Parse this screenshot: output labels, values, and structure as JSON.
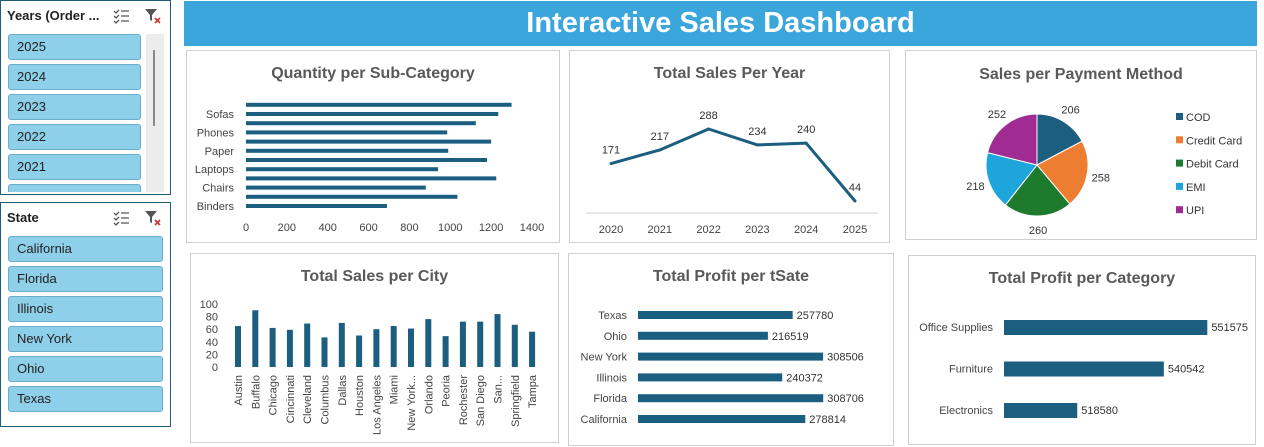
{
  "colors": {
    "bar": "#1b5e80",
    "banner": "#3aa6dc"
  },
  "slicers": {
    "years": {
      "title": "Years (Order ...",
      "items": [
        "2025",
        "2024",
        "2023",
        "2022",
        "2021"
      ]
    },
    "state": {
      "title": "State",
      "items": [
        "California",
        "Florida",
        "Illinois",
        "New York",
        "Ohio",
        "Texas"
      ]
    }
  },
  "dashboard": {
    "title": "Interactive Sales Dashboard"
  },
  "chart_data": [
    {
      "id": "qty_subcat",
      "type": "bar",
      "orientation": "horizontal",
      "title": "Quantity per Sub-Category",
      "categories": [
        "Binders",
        "",
        "Chairs",
        "",
        "Laptops",
        "",
        "Paper",
        "",
        "Phones",
        "",
        "Sofas",
        ""
      ],
      "values": [
        690,
        1035,
        880,
        1225,
        940,
        1180,
        990,
        1200,
        985,
        1125,
        1235,
        1300
      ],
      "xlim": [
        0,
        1400
      ],
      "ticks": [
        0,
        200,
        400,
        600,
        800,
        1000,
        1200,
        1400
      ],
      "tick_labels": [
        "0",
        "200",
        "400",
        "600",
        "800",
        "1000",
        "1200",
        "1400"
      ]
    },
    {
      "id": "sales_year",
      "type": "line",
      "title": "Total Sales Per Year",
      "x": [
        "2020",
        "2021",
        "2022",
        "2023",
        "2024",
        "2025"
      ],
      "values": [
        171,
        217,
        288,
        234,
        240,
        44
      ],
      "data_labels": [
        "171",
        "217",
        "288",
        "234",
        "240",
        "44"
      ]
    },
    {
      "id": "payment",
      "type": "pie",
      "title": "Sales per Payment Method",
      "labels": [
        "COD",
        "Credit Card",
        "Debit Card",
        "EMI",
        "UPI"
      ],
      "values": [
        206,
        258,
        260,
        218,
        252
      ],
      "data_labels": [
        "206",
        "258",
        "260",
        "218",
        "252"
      ],
      "colors": [
        "#1b5e80",
        "#ed7d31",
        "#1e7b2e",
        "#1ea5dc",
        "#a02b93"
      ],
      "legend": "right"
    },
    {
      "id": "sales_city",
      "type": "bar",
      "title": "Total Sales per City",
      "categories": [
        "Austin",
        "Buffalo",
        "Chicago",
        "Cincinnati",
        "Cleveland",
        "Columbus",
        "Dallas",
        "Houston",
        "Los Angeles",
        "Miami",
        "New York...",
        "Orlando",
        "Peoria",
        "Rochester",
        "San Diego",
        "San...",
        "Springfield",
        "Tampa"
      ],
      "values": [
        65,
        90,
        62,
        59,
        69,
        47,
        70,
        50,
        60,
        65,
        61,
        76,
        49,
        72,
        72,
        84,
        67,
        56
      ],
      "ylim": [
        0,
        100
      ],
      "ticks": [
        0,
        20,
        40,
        60,
        80,
        100
      ],
      "tick_labels": [
        "0",
        "20",
        "40",
        "60",
        "80",
        "100"
      ]
    },
    {
      "id": "profit_state",
      "type": "bar",
      "orientation": "horizontal",
      "title": "Total Profit per tSate",
      "categories": [
        "Texas",
        "Ohio",
        "New York",
        "Illinois",
        "Florida",
        "California"
      ],
      "values": [
        257780,
        216519,
        308506,
        240372,
        308706,
        278814
      ],
      "data_labels": [
        "257780",
        "216519",
        "308506",
        "240372",
        "308706",
        "278814"
      ],
      "xlim": [
        0,
        310000
      ]
    },
    {
      "id": "profit_cat",
      "type": "bar",
      "orientation": "horizontal",
      "title": "Total Profit per Category",
      "categories": [
        "Office Supplies",
        "Furniture",
        "Electronics"
      ],
      "values": [
        551575,
        540542,
        518580
      ],
      "data_labels": [
        "551575",
        "540542",
        "518580"
      ],
      "xlim": [
        500000,
        552000
      ]
    }
  ]
}
